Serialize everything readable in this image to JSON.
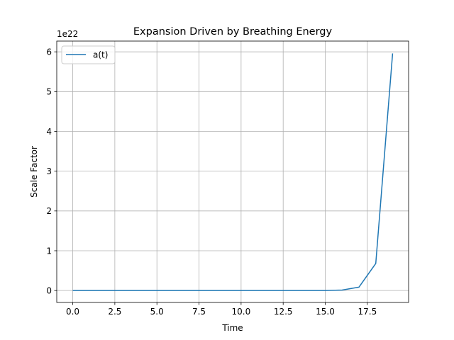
{
  "chart_data": {
    "type": "line",
    "title": "Expansion Driven by Breathing Energy",
    "xlabel": "Time",
    "ylabel": "Scale Factor",
    "y_offset_text": "1e22",
    "y_scale_exponent": 22,
    "xlim": [
      -0.95,
      19.95
    ],
    "ylim": [
      -0.3,
      6.27
    ],
    "x_ticks": [
      0,
      2.5,
      5,
      7.5,
      10,
      12.5,
      15,
      17.5
    ],
    "x_tick_labels": [
      "0.0",
      "2.5",
      "5.0",
      "7.5",
      "10.0",
      "12.5",
      "15.0",
      "17.5"
    ],
    "y_ticks": [
      0,
      1,
      2,
      3,
      4,
      5,
      6
    ],
    "y_tick_labels": [
      "0",
      "1",
      "2",
      "3",
      "4",
      "5",
      "6"
    ],
    "grid": true,
    "legend_position": "top-left",
    "series": [
      {
        "name": "a(t)",
        "color": "#1f77b4",
        "x": [
          0,
          1,
          2,
          3,
          4,
          5,
          6,
          7,
          8,
          9,
          10,
          11,
          12,
          13,
          14,
          15,
          16,
          17,
          18,
          19
        ],
        "y": [
          0,
          0,
          0,
          0,
          0,
          0,
          0,
          0,
          0,
          0,
          0,
          0,
          0,
          0,
          0,
          0.001,
          0.012,
          0.085,
          0.68,
          5.96
        ]
      }
    ]
  }
}
